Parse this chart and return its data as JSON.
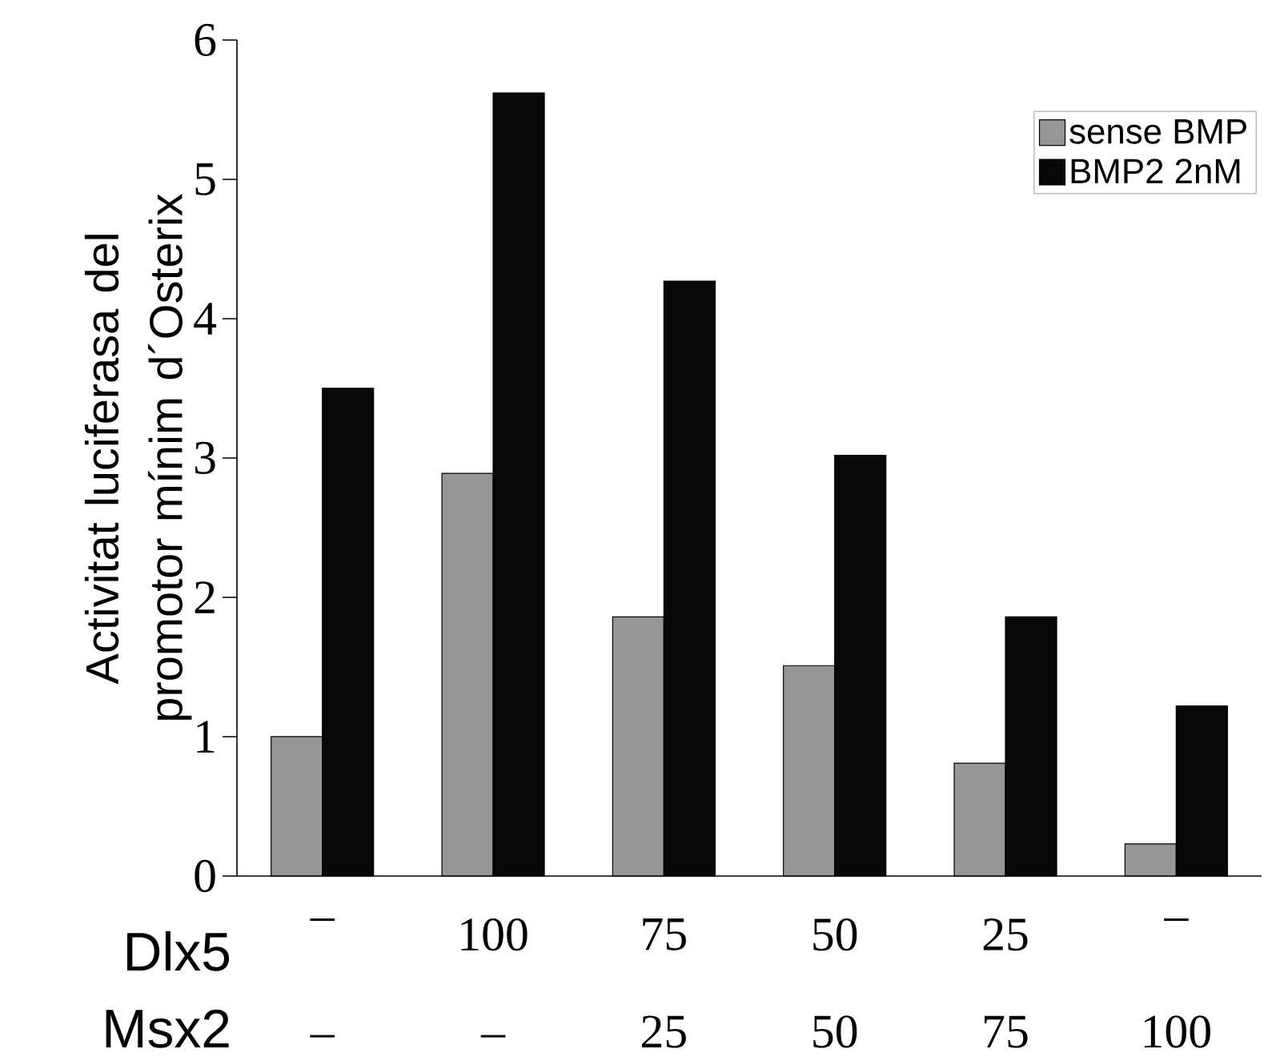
{
  "chart_data": {
    "type": "bar",
    "ylabel": "Activitat luciferasa del promotor mínim d´Osterix",
    "categories": [
      "–",
      "100",
      "75",
      "50",
      "25",
      "–"
    ],
    "series": [
      {
        "name": "sense BMP",
        "color": "#969696",
        "values": [
          1.0,
          2.89,
          1.86,
          1.51,
          0.81,
          0.23
        ]
      },
      {
        "name": "BMP2 2nM",
        "color": "#080808",
        "values": [
          3.5,
          5.62,
          4.27,
          3.02,
          1.86,
          1.22
        ]
      }
    ],
    "ylim": [
      0,
      6
    ],
    "yticks": [
      0,
      1,
      2,
      3,
      4,
      5,
      6
    ],
    "grid": false,
    "legend": "top right",
    "annotations": [
      "Dlx5",
      "Msx2",
      "–",
      "–",
      "25",
      "50",
      "75",
      "100"
    ]
  }
}
